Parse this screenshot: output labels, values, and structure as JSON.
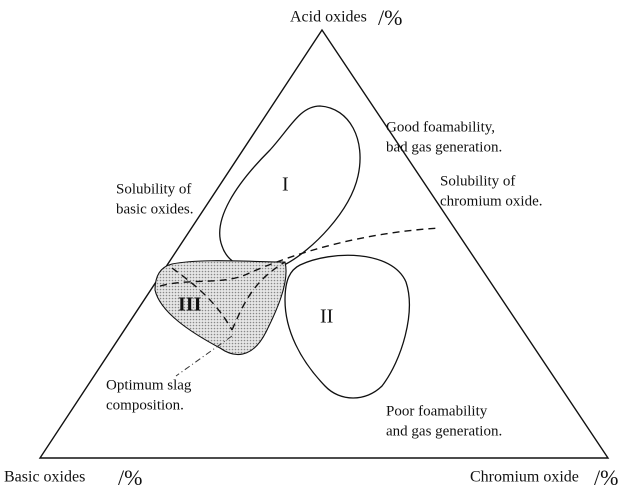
{
  "corners": {
    "top": {
      "name": "Acid oxides",
      "unit": "/%"
    },
    "left": {
      "name": "Basic oxides",
      "unit": "/%"
    },
    "right": {
      "name": "Chromium oxide",
      "unit": "/%"
    }
  },
  "annotations": {
    "good_foam": [
      "Good foamability,",
      "bad gas generation."
    ],
    "sol_chromium": [
      "Solubility of",
      "chromium oxide."
    ],
    "sol_basic": [
      "Solubility of",
      "basic oxides."
    ],
    "optimum": [
      "Optimum slag",
      "composition."
    ],
    "poor_foam": [
      "Poor foamability",
      "and gas generation."
    ]
  },
  "regions": [
    "I",
    "II",
    "III"
  ]
}
